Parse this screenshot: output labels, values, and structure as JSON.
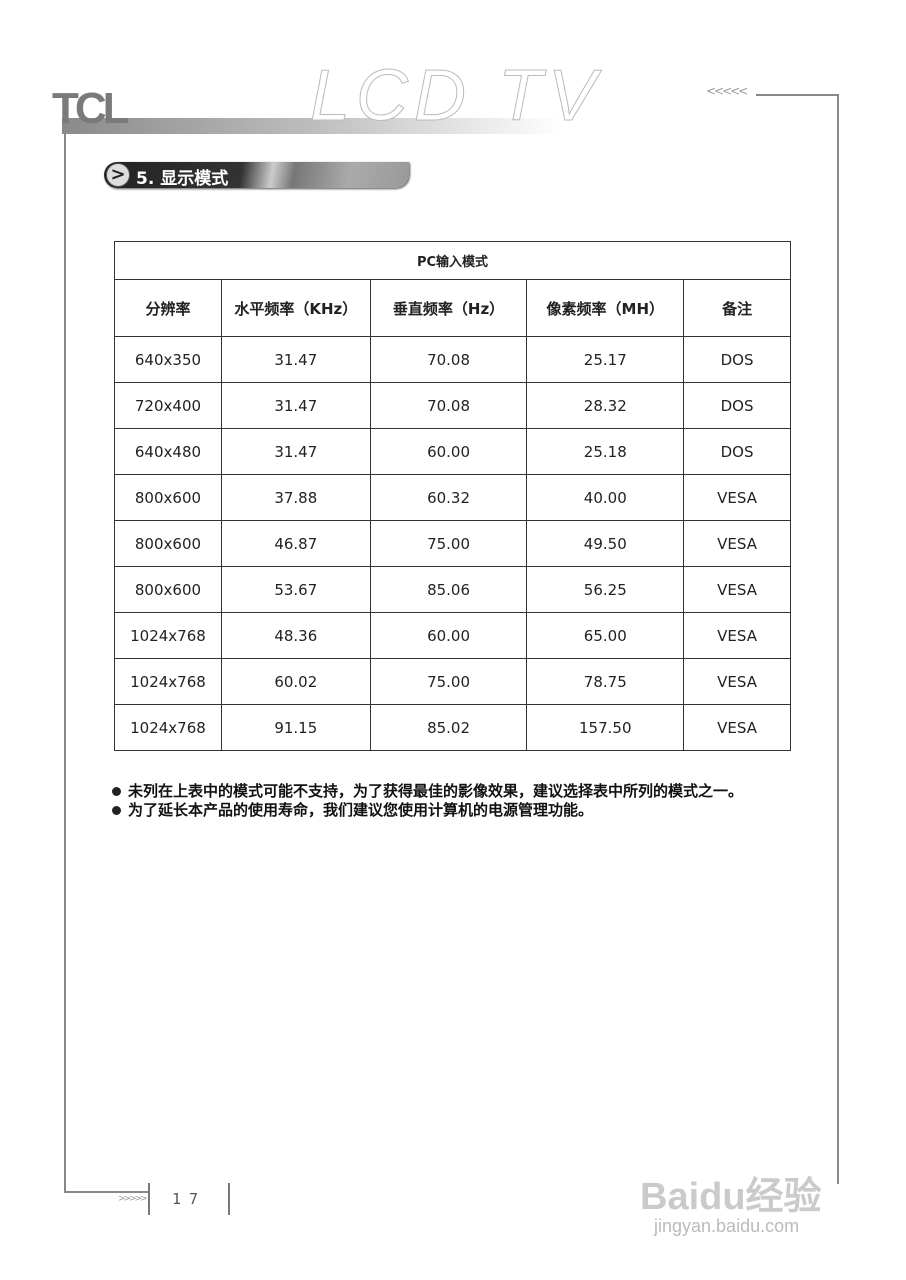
{
  "header": {
    "brand": "TCL",
    "product": "LCD TV",
    "chevrons": "<<<<<"
  },
  "section": {
    "arrow": ">",
    "title": "5. 显示模式"
  },
  "table": {
    "caption": "PC输入模式",
    "columns": [
      "分辨率",
      "水平频率（KHz）",
      "垂直频率（Hz）",
      "像素频率（MH）",
      "备注"
    ],
    "rows": [
      [
        "640x350",
        "31.47",
        "70.08",
        "25.17",
        "DOS"
      ],
      [
        "720x400",
        "31.47",
        "70.08",
        "28.32",
        "DOS"
      ],
      [
        "640x480",
        "31.47",
        "60.00",
        "25.18",
        "DOS"
      ],
      [
        "800x600",
        "37.88",
        "60.32",
        "40.00",
        "VESA"
      ],
      [
        "800x600",
        "46.87",
        "75.00",
        "49.50",
        "VESA"
      ],
      [
        "800x600",
        "53.67",
        "85.06",
        "56.25",
        "VESA"
      ],
      [
        "1024x768",
        "48.36",
        "60.00",
        "65.00",
        "VESA"
      ],
      [
        "1024x768",
        "60.02",
        "75.00",
        "78.75",
        "VESA"
      ],
      [
        "1024x768",
        "91.15",
        "85.02",
        "157.50",
        "VESA"
      ]
    ]
  },
  "notes": [
    "未列在上表中的模式可能不支持，为了获得最佳的影像效果，建议选择表中所列的模式之一。",
    "为了延长本产品的使用寿命，我们建议您使用计算机的电源管理功能。"
  ],
  "footer": {
    "page": "17",
    "chevrons": ">>>>>"
  },
  "watermark": {
    "logo": "Baidu经验",
    "url": "jingyan.baidu.com"
  }
}
